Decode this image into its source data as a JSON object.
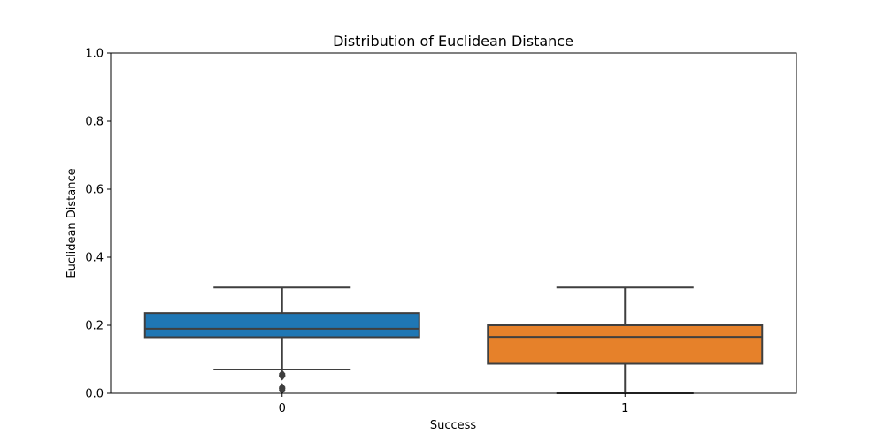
{
  "chart_data": {
    "type": "box",
    "title": "Distribution of Euclidean Distance",
    "xlabel": "Success",
    "ylabel": "Euclidean Distance",
    "ylim": [
      0.0,
      1.0
    ],
    "yticks": [
      "0.0",
      "0.2",
      "0.4",
      "0.6",
      "0.8",
      "1.0"
    ],
    "categories": [
      "0",
      "1"
    ],
    "series": [
      {
        "category": "0",
        "color": "#1f77b4",
        "whisker_low": 0.07,
        "q1": 0.165,
        "median": 0.19,
        "q3": 0.236,
        "whisker_high": 0.311,
        "outliers": [
          0.057,
          0.053,
          0.05,
          0.018,
          0.014,
          0.01
        ]
      },
      {
        "category": "1",
        "color": "#e6812a",
        "whisker_low": 0.0,
        "q1": 0.087,
        "median": 0.166,
        "q3": 0.2,
        "whisker_high": 0.311,
        "outliers": []
      }
    ],
    "grid": false,
    "legend": "none"
  }
}
